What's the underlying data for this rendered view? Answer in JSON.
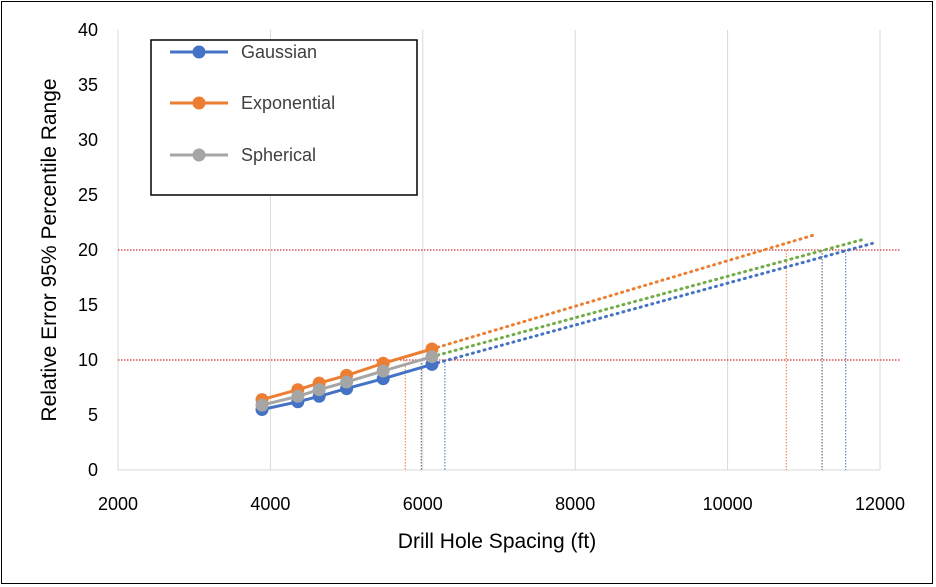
{
  "chart_data": {
    "type": "line",
    "title": "",
    "xlabel": "Drill Hole Spacing (ft)",
    "ylabel": "Relative Error 95% Percentile Range",
    "xlim": [
      2000,
      12000
    ],
    "ylim": [
      0,
      40
    ],
    "xticks": [
      2000,
      4000,
      6000,
      8000,
      10000,
      12000
    ],
    "yticks": [
      0,
      5,
      10,
      15,
      20,
      25,
      30,
      35,
      40
    ],
    "grid": "vertical",
    "legend_position": "top-left",
    "series": [
      {
        "name": "Gaussian",
        "color": "#4472C4",
        "x": [
          3890,
          4360,
          4640,
          5000,
          5480,
          6120
        ],
        "y": [
          5.5,
          6.2,
          6.7,
          7.4,
          8.3,
          9.6
        ]
      },
      {
        "name": "Exponential",
        "color": "#ED7D31",
        "x": [
          3890,
          4360,
          4640,
          5000,
          5480,
          6120
        ],
        "y": [
          6.4,
          7.3,
          7.9,
          8.6,
          9.7,
          11.0
        ]
      },
      {
        "name": "Spherical",
        "color": "#A5A5A5",
        "x": [
          3890,
          4360,
          4640,
          5000,
          5480,
          6120
        ],
        "y": [
          5.9,
          6.7,
          7.3,
          8.0,
          9.0,
          10.3
        ]
      }
    ],
    "trendlines": [
      {
        "series": "Gaussian",
        "color": "#4472C4",
        "x": [
          6120,
          11900
        ],
        "y": [
          9.6,
          20.6
        ]
      },
      {
        "series": "Exponential",
        "color": "#ED7D31",
        "x": [
          6120,
          11150
        ],
        "y": [
          11.0,
          21.4
        ]
      },
      {
        "series": "Spherical",
        "color": "#70AD47",
        "x": [
          6120,
          11800
        ],
        "y": [
          10.3,
          21.0
        ]
      }
    ],
    "reference_lines": {
      "horizontal": [
        {
          "y": 10,
          "color": "#C00000"
        },
        {
          "y": 20,
          "color": "#C00000"
        }
      ],
      "vertical": [
        {
          "x": 5770,
          "y_to": 10,
          "color": "#ED7D31"
        },
        {
          "x": 5980,
          "y_to": 10,
          "color": "#44546A"
        },
        {
          "x": 6290,
          "y_to": 10,
          "color": "#4472C4"
        },
        {
          "x": 10770,
          "y_to": 20,
          "color": "#ED7D31"
        },
        {
          "x": 11240,
          "y_to": 20,
          "color": "#44546A"
        },
        {
          "x": 11550,
          "y_to": 20,
          "color": "#4472C4"
        }
      ]
    }
  }
}
